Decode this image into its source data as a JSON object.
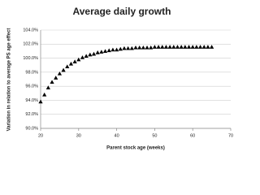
{
  "chart_data": {
    "type": "scatter",
    "title": "Average daily growth",
    "xlabel": "Parent stock age (weeks)",
    "ylabel": "Variation in relation to average PS age effect",
    "x": [
      20,
      21,
      22,
      23,
      24,
      25,
      26,
      27,
      28,
      29,
      30,
      31,
      32,
      33,
      34,
      35,
      36,
      37,
      38,
      39,
      40,
      41,
      42,
      43,
      44,
      45,
      46,
      47,
      48,
      49,
      50,
      51,
      52,
      53,
      54,
      55,
      56,
      57,
      58,
      59,
      60,
      61,
      62,
      63,
      64,
      65
    ],
    "values": [
      93.8,
      94.8,
      95.8,
      96.6,
      97.2,
      97.8,
      98.3,
      98.8,
      99.2,
      99.5,
      99.8,
      100.1,
      100.3,
      100.5,
      100.6,
      100.8,
      100.9,
      101.0,
      101.1,
      101.2,
      101.2,
      101.3,
      101.4,
      101.4,
      101.4,
      101.5,
      101.5,
      101.5,
      101.5,
      101.5,
      101.6,
      101.6,
      101.6,
      101.6,
      101.6,
      101.6,
      101.6,
      101.6,
      101.6,
      101.6,
      101.6,
      101.6,
      101.6,
      101.6,
      101.6,
      101.6
    ],
    "color": "#000000",
    "marker": "triangle",
    "xlim": [
      20,
      70
    ],
    "xticks": [
      20,
      30,
      40,
      50,
      60,
      70
    ],
    "ylim": [
      90,
      104
    ],
    "yticks": [
      {
        "value": 90,
        "label": "90.0%"
      },
      {
        "value": 92,
        "label": "92.0%"
      },
      {
        "value": 94,
        "label": "94.0%"
      },
      {
        "value": 96,
        "label": "96.0%"
      },
      {
        "value": 98,
        "label": "98.0%"
      },
      {
        "value": 100,
        "label": "100.0%"
      },
      {
        "value": 102,
        "label": "102.0%"
      },
      {
        "value": 104,
        "label": "104.0%"
      }
    ],
    "grid": true
  }
}
